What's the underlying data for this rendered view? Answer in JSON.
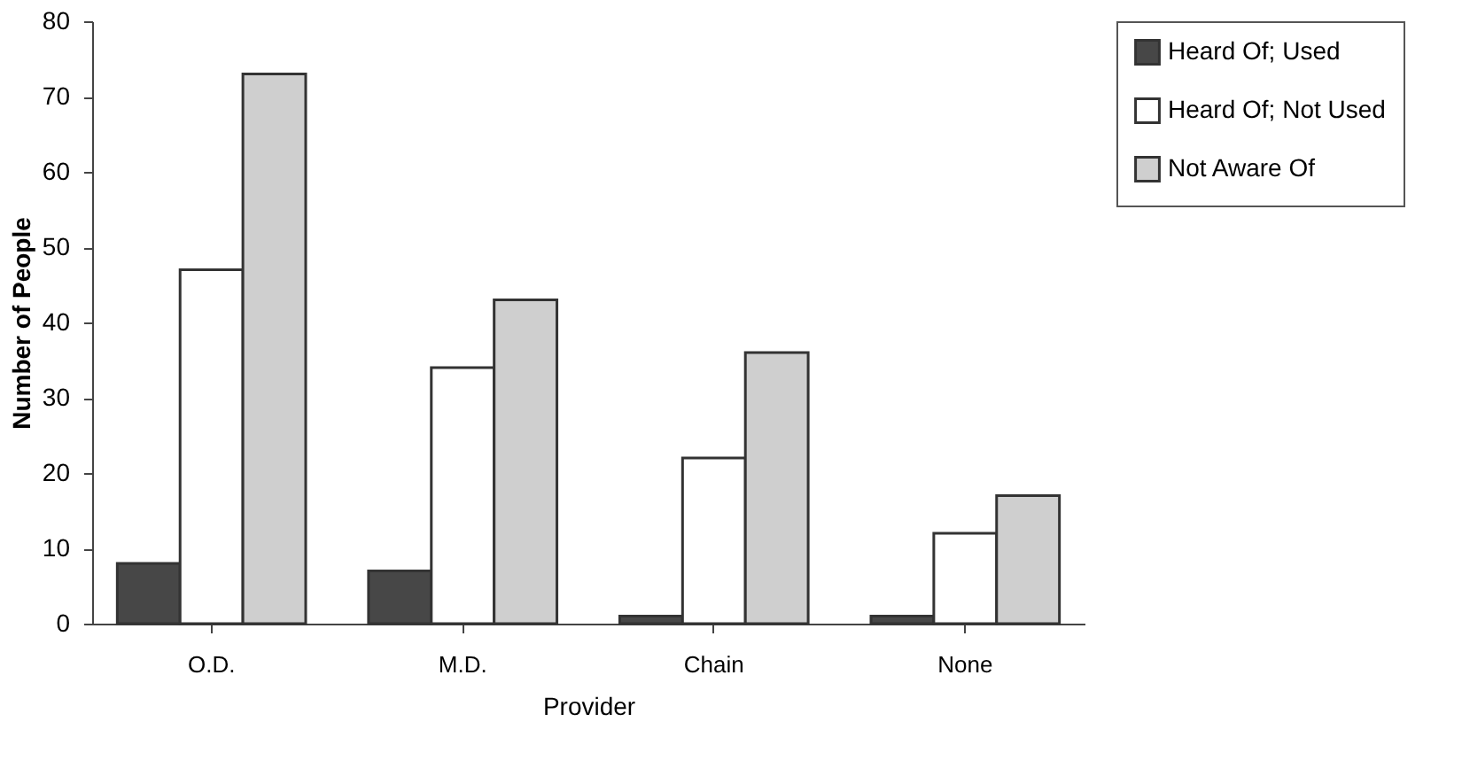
{
  "chart_data": {
    "type": "bar",
    "xlabel": "Provider",
    "ylabel": "Number of People",
    "categories": [
      "O.D.",
      "M.D.",
      "Chain",
      "None"
    ],
    "series": [
      {
        "name": "Heard Of; Used",
        "color": "#474747",
        "values": [
          8,
          7,
          1,
          1
        ]
      },
      {
        "name": "Heard Of; Not Used",
        "color": "#ffffff",
        "values": [
          47,
          34,
          22,
          12
        ]
      },
      {
        "name": "Not Aware Of",
        "color": "#cfcfcf",
        "values": [
          73,
          43,
          36,
          17
        ]
      }
    ],
    "ylim": [
      0,
      80
    ],
    "yticks": [
      0,
      10,
      20,
      30,
      40,
      50,
      60,
      70,
      80
    ],
    "grid": false,
    "legend": "right"
  }
}
